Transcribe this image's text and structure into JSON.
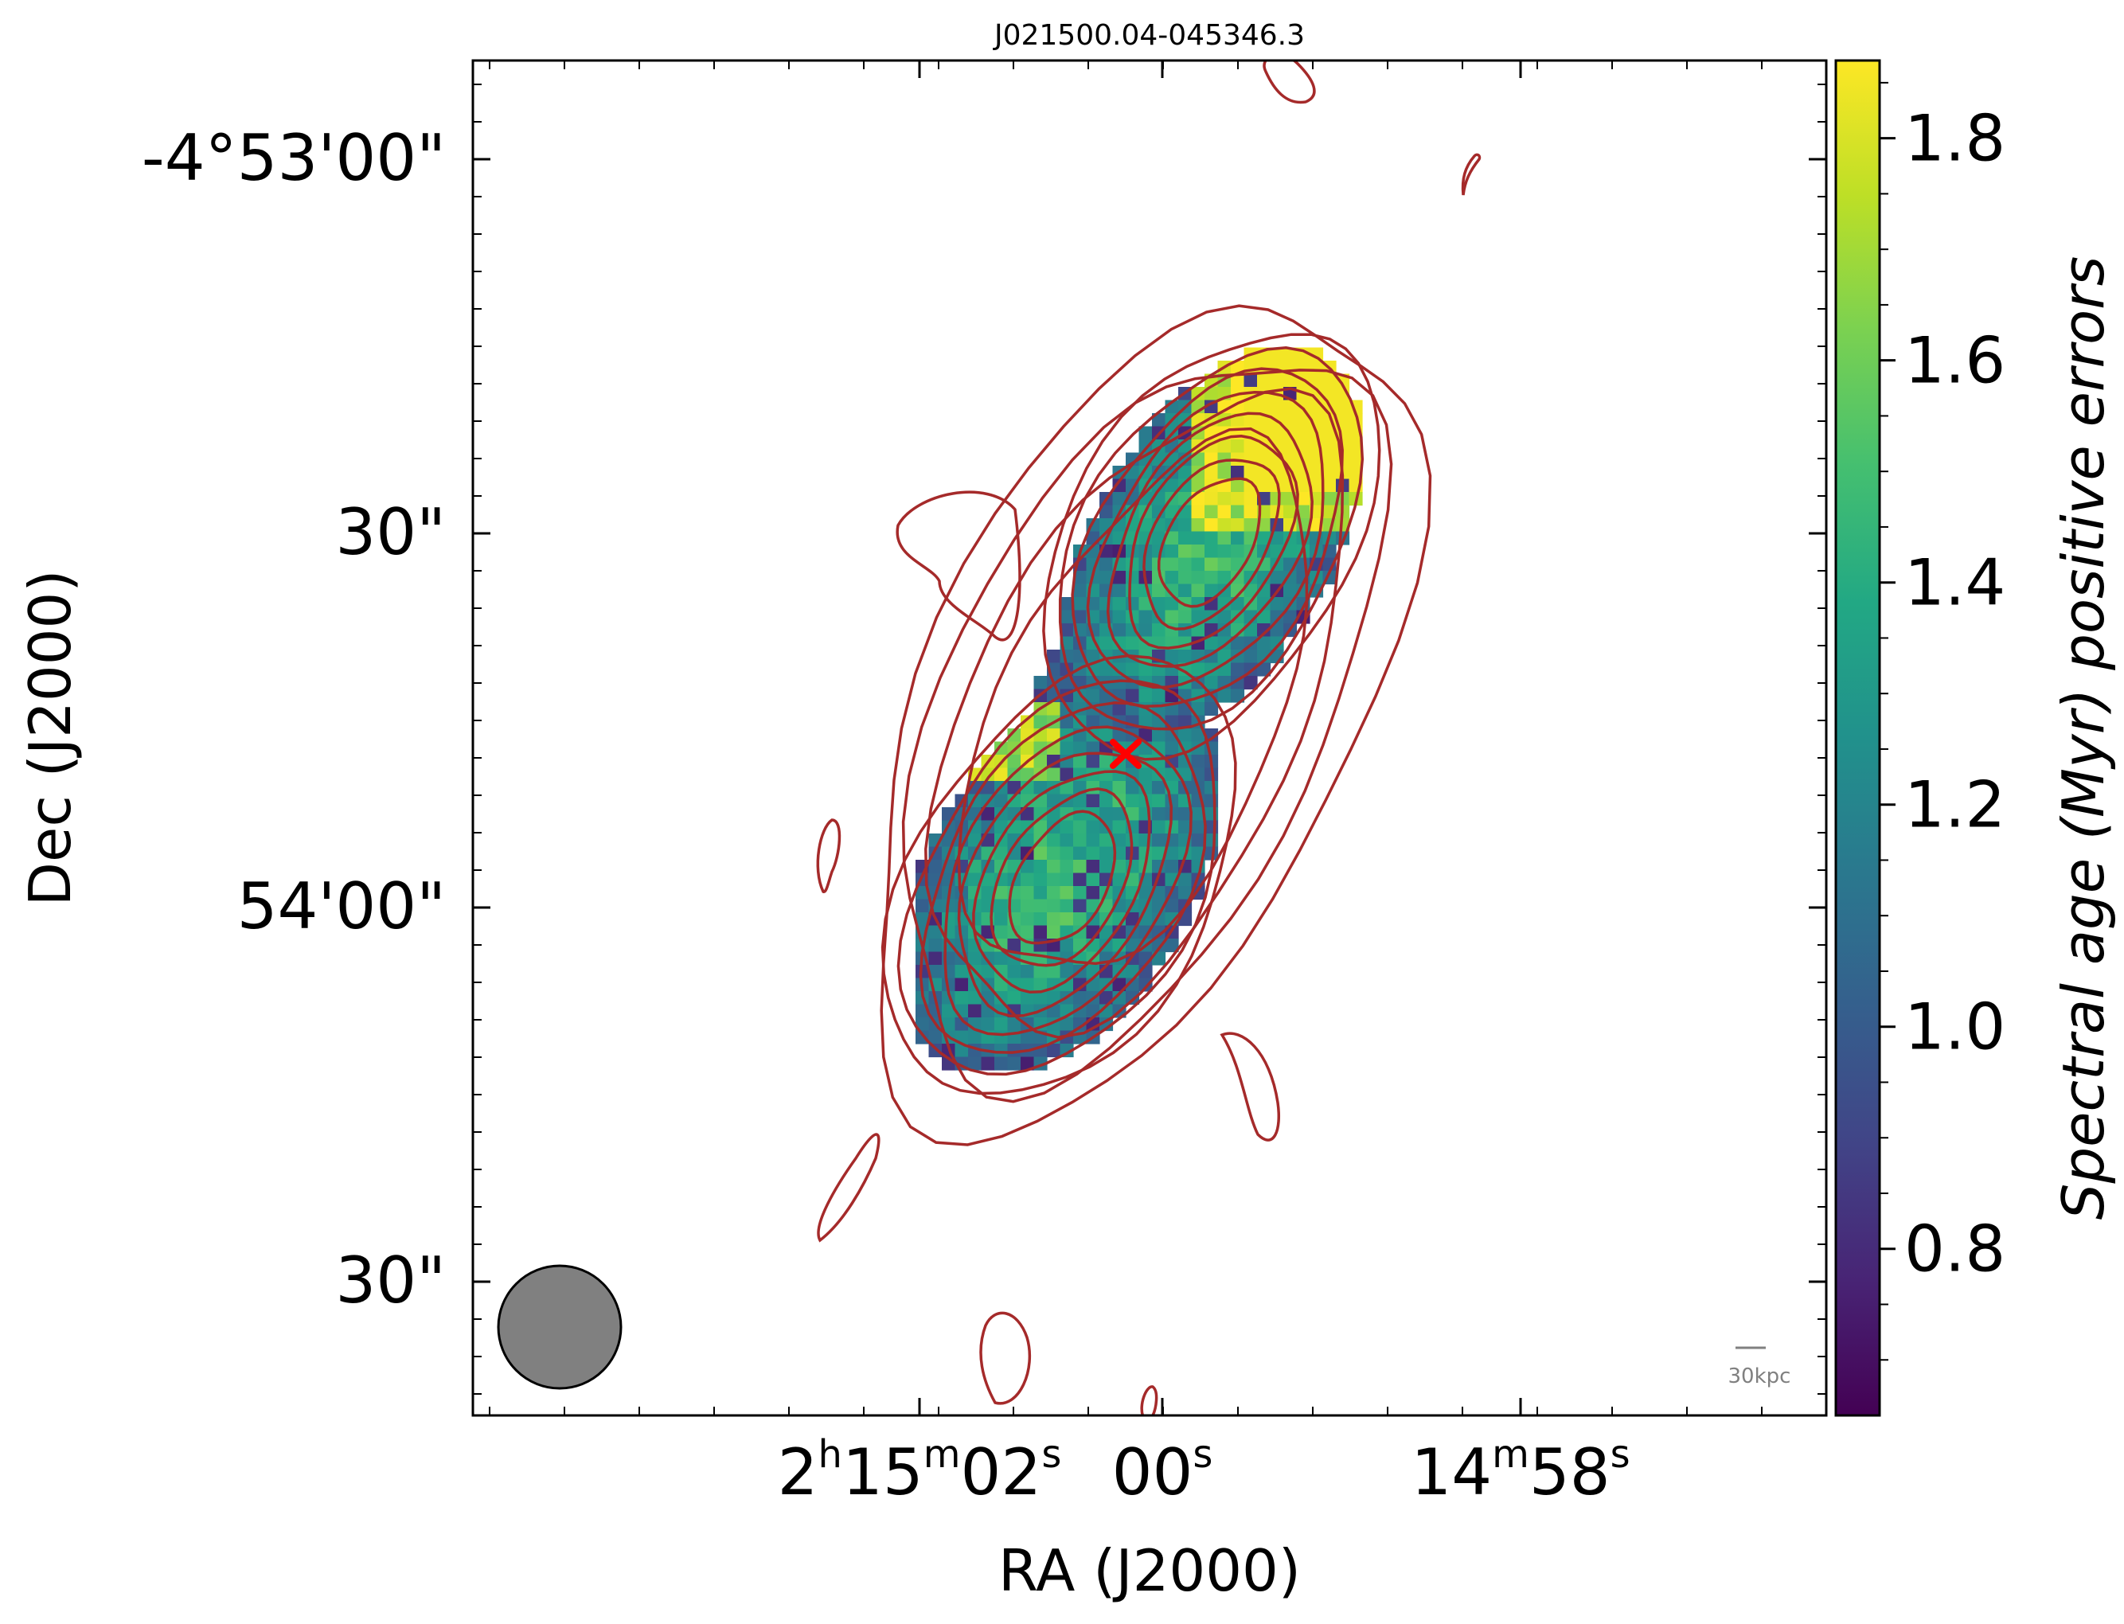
{
  "chart_data": {
    "type": "heatmap",
    "title": "J021500.04-045346.3",
    "xlabel": "RA (J2000)",
    "ylabel": "Dec (J2000)",
    "colorbar_label": "Spectral age (Myr) positive errors",
    "colormap": "viridis",
    "colorbar_range": [
      0.65,
      1.87
    ],
    "colorbar_ticks": [
      "0.8",
      "1.0",
      "1.2",
      "1.4",
      "1.6",
      "1.8"
    ],
    "x_ticks": [
      {
        "h": "2",
        "hs": "h",
        "m": "15",
        "ms": "m",
        "s": "02",
        "ss": "s"
      },
      {
        "h": "",
        "hs": "",
        "m": "",
        "ms": "",
        "s": "00",
        "ss": "s"
      },
      {
        "h": "",
        "hs": "",
        "m": "14",
        "ms": "m",
        "s": "58",
        "ss": "s"
      }
    ],
    "y_ticks": [
      "-4°53'00\"",
      "30\"",
      "54'00\"",
      "30\""
    ],
    "markers": [
      {
        "name": "host",
        "symbol": "x",
        "color": "#ff0000"
      }
    ],
    "contour_color": "#a52a2a",
    "beam_color": "#808080",
    "scalebar_label": "30kpc"
  }
}
